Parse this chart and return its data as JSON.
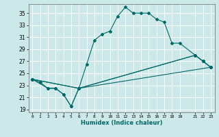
{
  "xlabel": "Humidex (Indice chaleur)",
  "xlim": [
    -0.5,
    23.5
  ],
  "ylim": [
    18.5,
    36.5
  ],
  "xticks": [
    0,
    1,
    2,
    3,
    4,
    5,
    6,
    7,
    8,
    9,
    10,
    11,
    12,
    13,
    14,
    15,
    16,
    17,
    18,
    19,
    21,
    22,
    23
  ],
  "yticks": [
    19,
    21,
    23,
    25,
    27,
    29,
    31,
    33,
    35
  ],
  "bg_color": "#cde8e8",
  "grid_color": "#b0d8d8",
  "line_color": "#006868",
  "line1_x": [
    0,
    1,
    2,
    3,
    4,
    5,
    6,
    7,
    8,
    9,
    10,
    11,
    12,
    13,
    14,
    15,
    16,
    17,
    18,
    19,
    21,
    22,
    23
  ],
  "line1_y": [
    24,
    23.5,
    22.5,
    22.5,
    21.5,
    19.5,
    22.5,
    26.5,
    30.5,
    31.5,
    32,
    34.5,
    36,
    35,
    35,
    35,
    34,
    33.5,
    30,
    30,
    28,
    27,
    26
  ],
  "line2_x": [
    0,
    2,
    3,
    4,
    5,
    6,
    21,
    22,
    23
  ],
  "line2_y": [
    24,
    22.5,
    22.5,
    21.5,
    19.5,
    22.5,
    28,
    27,
    26
  ],
  "line3_x": [
    0,
    6,
    21,
    22,
    23
  ],
  "line3_y": [
    24,
    22.5,
    28,
    27,
    26
  ],
  "line4_x": [
    0,
    6,
    23
  ],
  "line4_y": [
    24,
    22.5,
    26
  ]
}
